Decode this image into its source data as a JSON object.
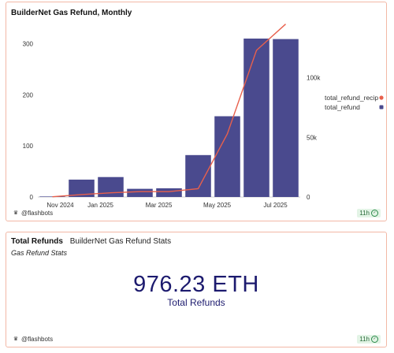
{
  "card1": {
    "title": "BuilderNet Gas Refund, Monthly",
    "footer_user": "@flashbots",
    "badge": "11h"
  },
  "card2": {
    "title": "Total Refunds",
    "subtitle": "BuilderNet Gas Refund Stats",
    "chart_name": "Gas Refund Stats",
    "value": "976.23 ETH",
    "label": "Total Refunds",
    "footer_user": "@flashbots",
    "badge": "11h"
  },
  "chart_data": {
    "type": "bar",
    "title": "BuilderNet Gas Refund, Monthly",
    "xlabel": "",
    "ylabel": "",
    "x_ticks": [
      "Nov 2024",
      "Jan 2025",
      "Mar 2025",
      "May 2025",
      "Jul 2025"
    ],
    "categories": [
      "2024-11",
      "2024-12",
      "2025-01",
      "2025-02",
      "2025-03",
      "2025-04",
      "2025-05",
      "2025-06",
      "2025-07"
    ],
    "series": [
      {
        "name": "total_refund",
        "type": "bar",
        "axis": "left",
        "color": "#4a4a8e",
        "values": [
          1,
          34,
          39,
          16,
          17,
          82,
          158,
          310,
          309
        ]
      },
      {
        "name": "total_refund_recip",
        "type": "line",
        "axis": "right",
        "color": "#e8604c",
        "values": [
          200,
          2000,
          3500,
          4500,
          4500,
          7000,
          53000,
          123000,
          145000
        ]
      }
    ],
    "left_axis": {
      "ylim": [
        0,
        350
      ],
      "ticks": [
        0,
        100,
        200,
        300
      ]
    },
    "right_axis": {
      "ylim": [
        0,
        150000
      ],
      "ticks": [
        "0",
        "50k",
        "100k"
      ]
    },
    "legend_placement": "right",
    "grid": false
  }
}
